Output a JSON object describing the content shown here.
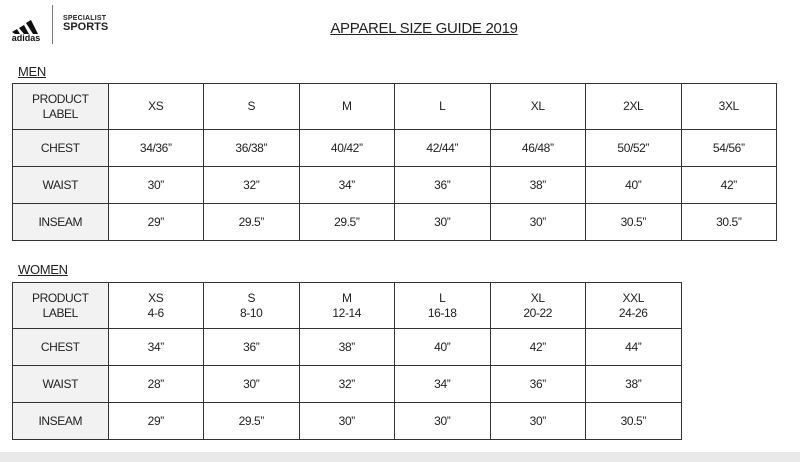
{
  "header": {
    "logo_text": "adidas",
    "brand_line1": "SPECIALIST",
    "brand_line2": "SPORTS",
    "title": "APPAREL SIZE GUIDE 2019"
  },
  "men": {
    "label": "MEN",
    "header": [
      "PRODUCT\nLABEL",
      "XS",
      "S",
      "M",
      "L",
      "XL",
      "2XL",
      "3XL"
    ],
    "rows": [
      [
        "CHEST",
        "34/36”",
        "36/38”",
        "40/42”",
        "42/44”",
        "46/48”",
        "50/52”",
        "54/56”"
      ],
      [
        "WAIST",
        "30”",
        "32”",
        "34”",
        "36”",
        "38”",
        "40”",
        "42”"
      ],
      [
        "INSEAM",
        "29”",
        "29.5”",
        "29.5”",
        "30”",
        "30”",
        "30.5”",
        "30.5”"
      ]
    ]
  },
  "women": {
    "label": "WOMEN",
    "header": [
      "PRODUCT\nLABEL",
      "XS\n4-6",
      "S\n8-10",
      "M\n12-14",
      "L\n16-18",
      "XL\n20-22",
      "XXL\n24-26"
    ],
    "rows": [
      [
        "CHEST",
        "34”",
        "36”",
        "38”",
        "40”",
        "42”",
        "44”"
      ],
      [
        "WAIST",
        "28”",
        "30”",
        "32”",
        "34”",
        "36”",
        "38”"
      ],
      [
        "INSEAM",
        "29”",
        "29.5”",
        "30”",
        "30”",
        "30”",
        "30.5”"
      ]
    ]
  }
}
